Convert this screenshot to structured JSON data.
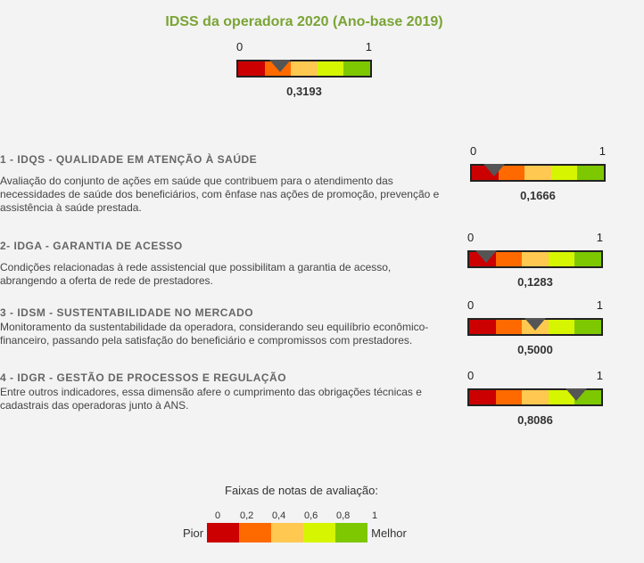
{
  "main": {
    "title": "IDSS da operadora 2020 (Ano-base 2019)",
    "overall": {
      "min": "0",
      "max": "1",
      "value_label": "0,3193",
      "value": 0.3193
    }
  },
  "colors": {
    "band_colors": [
      "#cc0000",
      "#ff6a00",
      "#ffc850",
      "#d6f500",
      "#7dc800"
    ],
    "title_color": "#7aa435"
  },
  "sections": [
    {
      "heading": "1 - IDQS - QUALIDADE EM ATENÇÃO À SAÚDE",
      "description": "Avaliação do conjunto de ações em saúde que contribuem para o atendimento das necessidades de saúde dos beneficiários, com ênfase nas ações de promoção, prevenção e assistência à saúde prestada.",
      "min": "0",
      "max": "1",
      "value_label": "0,1666",
      "value": 0.1666
    },
    {
      "heading": "2- IDGA - GARANTIA DE ACESSO",
      "description": "Condições relacionadas à rede assistencial que possibilitam a garantia de acesso, abrangendo a oferta de rede de prestadores.",
      "min": "0",
      "max": "1",
      "value_label": "0,1283",
      "value": 0.1283
    },
    {
      "heading": "3 - IDSM - SUSTENTABILIDADE NO MERCADO",
      "description": "Monitoramento da sustentabilidade da operadora, considerando seu equilíbrio econômico-financeiro, passando pela satisfação do beneficiário e compromissos com prestadores.",
      "min": "0",
      "max": "1",
      "value_label": "0,5000",
      "value": 0.5
    },
    {
      "heading": "4 - IDGR - GESTÃO DE PROCESSOS E REGULAÇÃO",
      "description": "Entre outros indicadores, essa dimensão afere o cumprimento das obrigações técnicas e cadastrais das operadoras junto à ANS.",
      "min": "0",
      "max": "1",
      "value_label": "0,8086",
      "value": 0.8086
    }
  ],
  "legend": {
    "title": "Faixas de notas de avaliação:",
    "ticks": [
      "0",
      "0,2",
      "0,4",
      "0,6",
      "0,8",
      "1"
    ],
    "worst_label": "Pior",
    "best_label": "Melhor"
  }
}
